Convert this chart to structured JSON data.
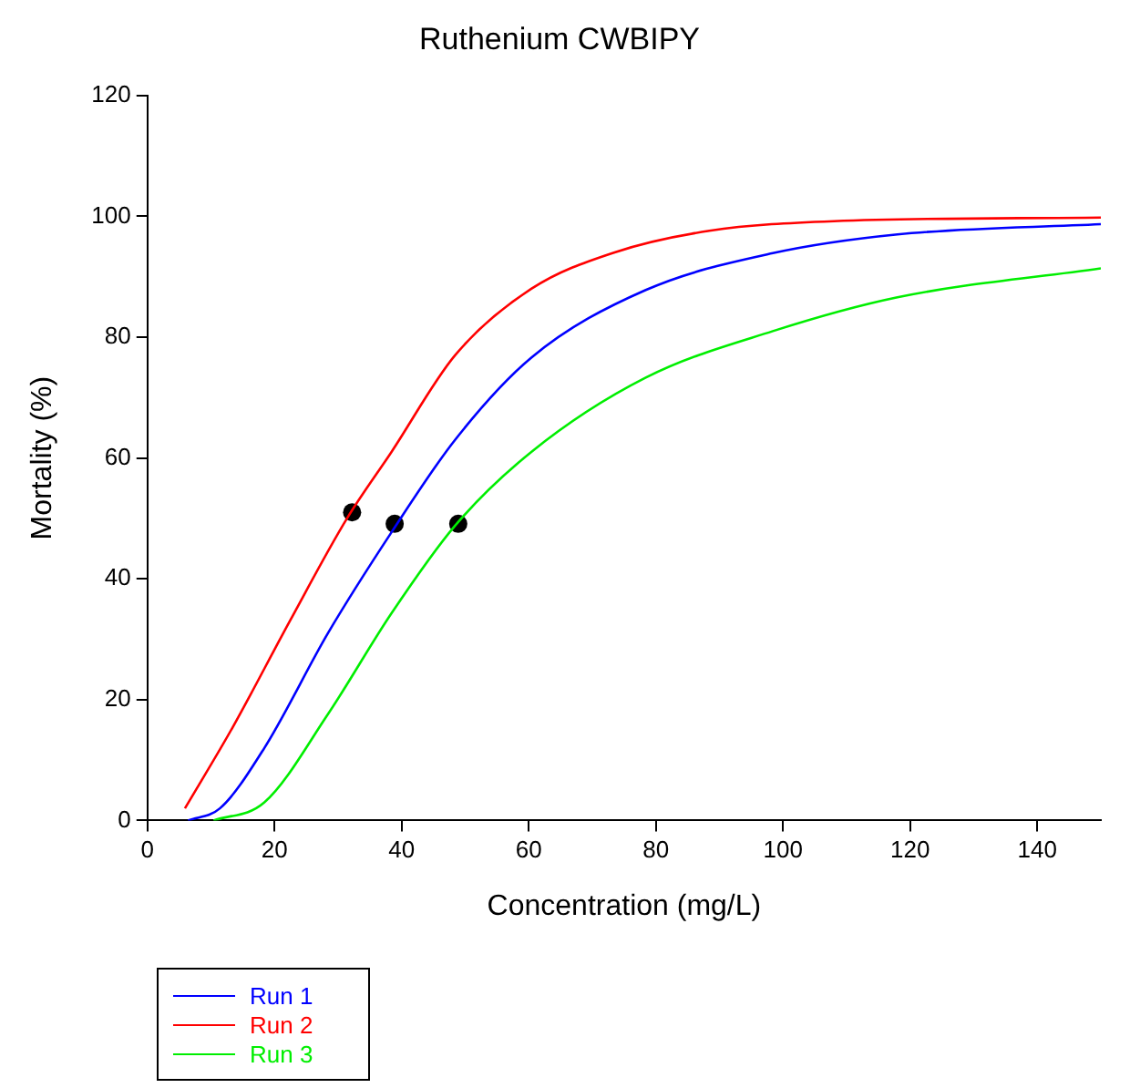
{
  "chart_data": {
    "type": "line",
    "title": "Ruthenium CWBIPY",
    "xlabel": "Concentration (mg/L)",
    "ylabel": "Mortality (%)",
    "xlim": [
      0,
      150
    ],
    "xticks": [
      0,
      20,
      40,
      60,
      80,
      100,
      120,
      140
    ],
    "ylim": [
      0,
      120
    ],
    "yticks": [
      0,
      20,
      40,
      60,
      80,
      100,
      120
    ],
    "grid": false,
    "legend": "bottom left",
    "marker": "none",
    "line_style": "solid",
    "series": [
      {
        "name": "Run 1",
        "color": "#0000ff",
        "x": [
          6.4,
          11.4,
          18.4,
          28.4,
          38.4,
          48.4,
          60.4,
          78.4,
          98.4,
          118,
          150
        ],
        "values": [
          0,
          2,
          12,
          31,
          47.7,
          63,
          76.6,
          87.8,
          93.9,
          97,
          98.7
        ]
      },
      {
        "name": "Run 2",
        "color": "#ff0000",
        "x": [
          5.9,
          13.4,
          22.4,
          31.4,
          38.4,
          48.4,
          60.4,
          73.4,
          88.4,
          108,
          150
        ],
        "values": [
          2,
          15.4,
          33,
          50,
          61,
          77,
          88,
          94,
          97.6,
          99.2,
          99.8
        ]
      },
      {
        "name": "Run 3",
        "color": "#00ee00",
        "x": [
          10.4,
          18.4,
          28.4,
          38.4,
          48.4,
          60.4,
          78.4,
          98.4,
          118,
          150
        ],
        "values": [
          0,
          3,
          17.6,
          34.3,
          48.8,
          61,
          73.3,
          81,
          86.6,
          91.4
        ]
      },
      {
        "type": "scatter",
        "color": "#000000",
        "marker": "circle",
        "x": [
          32.2,
          38.9,
          48.9
        ],
        "values": [
          51,
          49.1,
          49.1
        ]
      }
    ]
  }
}
